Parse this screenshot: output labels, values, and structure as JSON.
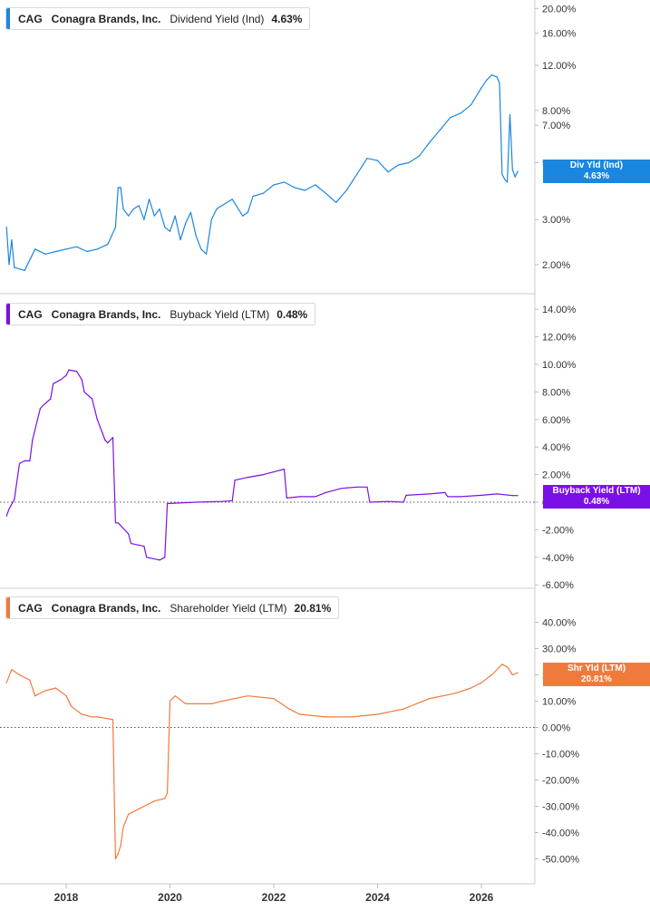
{
  "panels": [
    {
      "ticker": "CAG",
      "company": "Conagra Brands, Inc.",
      "metric": "Dividend Yield (Ind)",
      "value": "4.63%",
      "tag_line1": "Div Yld (Ind)",
      "tag_line2": "4.63%",
      "color": "#1a86e0"
    },
    {
      "ticker": "CAG",
      "company": "Conagra Brands, Inc.",
      "metric": "Buyback Yield (LTM)",
      "value": "0.48%",
      "tag_line1": "Buyback Yield (LTM)",
      "tag_line2": "0.48%",
      "color": "#7a10e8"
    },
    {
      "ticker": "CAG",
      "company": "Conagra Brands, Inc.",
      "metric": "Shareholder Yield (LTM)",
      "value": "20.81%",
      "tag_line1": "Shr Yld (LTM)",
      "tag_line2": "20.81%",
      "color": "#f07a3c"
    }
  ],
  "chart_data": [
    {
      "type": "line",
      "scale": "log",
      "y_ticks": [
        2,
        3,
        5,
        7,
        8,
        12,
        16,
        20
      ],
      "y_tick_labels": [
        "2.00%",
        "3.00%",
        "5.00%",
        "7.00%",
        "8.00%",
        "12.00%",
        "16.00%",
        "20.00%"
      ],
      "x_ticks": [
        2018,
        2020,
        2022,
        2024,
        2026
      ],
      "x": [
        2016.85,
        2016.9,
        2016.95,
        2017.0,
        2017.2,
        2017.4,
        2017.6,
        2017.8,
        2018.0,
        2018.2,
        2018.4,
        2018.6,
        2018.8,
        2018.95,
        2019.0,
        2019.05,
        2019.1,
        2019.2,
        2019.3,
        2019.4,
        2019.5,
        2019.6,
        2019.7,
        2019.8,
        2019.9,
        2020.0,
        2020.1,
        2020.2,
        2020.3,
        2020.4,
        2020.5,
        2020.6,
        2020.7,
        2020.8,
        2020.9,
        2021.0,
        2021.2,
        2021.4,
        2021.5,
        2021.6,
        2021.8,
        2022.0,
        2022.2,
        2022.4,
        2022.6,
        2022.8,
        2023.0,
        2023.2,
        2023.4,
        2023.6,
        2023.8,
        2024.0,
        2024.2,
        2024.4,
        2024.6,
        2024.8,
        2025.0,
        2025.2,
        2025.4,
        2025.6,
        2025.8,
        2026.0,
        2026.1,
        2026.2,
        2026.3,
        2026.35,
        2026.4,
        2026.45,
        2026.5,
        2026.55,
        2026.6,
        2026.65,
        2026.7
      ],
      "y": [
        2.8,
        2.0,
        2.5,
        1.95,
        1.9,
        2.3,
        2.2,
        2.25,
        2.3,
        2.35,
        2.25,
        2.3,
        2.4,
        2.8,
        4.0,
        4.0,
        3.3,
        3.1,
        3.3,
        3.4,
        3.0,
        3.6,
        3.1,
        3.3,
        2.8,
        2.7,
        3.1,
        2.5,
        2.9,
        3.2,
        2.6,
        2.3,
        2.2,
        3.0,
        3.3,
        3.4,
        3.6,
        3.1,
        3.2,
        3.7,
        3.8,
        4.1,
        4.2,
        4.0,
        3.9,
        4.1,
        3.8,
        3.5,
        3.9,
        4.5,
        5.2,
        5.1,
        4.6,
        4.9,
        5.0,
        5.3,
        6.0,
        6.7,
        7.5,
        7.8,
        8.4,
        9.8,
        10.5,
        11.0,
        10.8,
        10.2,
        4.5,
        4.3,
        4.2,
        7.7,
        4.7,
        4.4,
        4.63
      ],
      "current": 4.63,
      "ylabel": "",
      "xlabel": ""
    },
    {
      "type": "line",
      "scale": "linear",
      "y_ticks": [
        -6,
        -4,
        -2,
        0,
        2,
        4,
        6,
        8,
        10,
        12,
        14
      ],
      "y_tick_labels": [
        "-6.00%",
        "-4.00%",
        "-2.00%",
        "0.00%",
        "2.00%",
        "4.00%",
        "6.00%",
        "8.00%",
        "10.00%",
        "12.00%",
        "14.00%"
      ],
      "x_ticks": [
        2018,
        2020,
        2022,
        2024,
        2026
      ],
      "x": [
        2016.85,
        2016.9,
        2017.0,
        2017.1,
        2017.2,
        2017.3,
        2017.35,
        2017.5,
        2017.55,
        2017.7,
        2017.75,
        2017.9,
        2018.0,
        2018.05,
        2018.2,
        2018.3,
        2018.35,
        2018.5,
        2018.6,
        2018.7,
        2018.75,
        2018.8,
        2018.9,
        2018.95,
        2019.0,
        2019.2,
        2019.25,
        2019.5,
        2019.55,
        2019.8,
        2019.9,
        2019.95,
        2020.5,
        2021.0,
        2021.2,
        2021.25,
        2021.5,
        2021.8,
        2022.0,
        2022.2,
        2022.25,
        2022.5,
        2022.8,
        2023.0,
        2023.3,
        2023.6,
        2023.8,
        2023.85,
        2024.2,
        2024.5,
        2024.55,
        2025.0,
        2025.3,
        2025.35,
        2025.6,
        2026.0,
        2026.3,
        2026.6,
        2026.7
      ],
      "y": [
        -1.0,
        -0.5,
        0.2,
        2.8,
        3.0,
        3.0,
        4.5,
        6.8,
        7.0,
        7.5,
        8.6,
        8.9,
        9.2,
        9.6,
        9.5,
        8.9,
        8.0,
        7.5,
        6.0,
        5.0,
        4.5,
        4.3,
        4.7,
        -1.5,
        -1.5,
        -2.3,
        -3.0,
        -3.2,
        -4.0,
        -4.2,
        -4.0,
        -0.1,
        0.0,
        0.05,
        0.1,
        1.6,
        1.8,
        2.0,
        2.2,
        2.4,
        0.3,
        0.4,
        0.4,
        0.7,
        1.0,
        1.1,
        1.1,
        0.0,
        0.05,
        0.0,
        0.5,
        0.6,
        0.7,
        0.4,
        0.4,
        0.5,
        0.6,
        0.48,
        0.48
      ],
      "current": 0.48,
      "ylabel": "",
      "xlabel": ""
    },
    {
      "type": "line",
      "scale": "linear",
      "y_ticks": [
        -50,
        -40,
        -30,
        -20,
        -10,
        0,
        10,
        20,
        30,
        40
      ],
      "y_tick_labels": [
        "-50.00%",
        "-40.00%",
        "-30.00%",
        "-20.00%",
        "-10.00%",
        "0.00%",
        "10.00%",
        "20.00%",
        "30.00%",
        "40.00%"
      ],
      "x_ticks": [
        2018,
        2020,
        2022,
        2024,
        2026
      ],
      "x": [
        2016.85,
        2016.95,
        2017.1,
        2017.3,
        2017.4,
        2017.6,
        2017.8,
        2018.0,
        2018.1,
        2018.3,
        2018.5,
        2018.6,
        2018.9,
        2018.95,
        2019.0,
        2019.05,
        2019.1,
        2019.2,
        2019.3,
        2019.5,
        2019.7,
        2019.9,
        2019.95,
        2020.0,
        2020.1,
        2020.3,
        2020.5,
        2020.8,
        2021.0,
        2021.5,
        2022.0,
        2022.3,
        2022.5,
        2023.0,
        2023.5,
        2024.0,
        2024.5,
        2025.0,
        2025.5,
        2025.8,
        2026.0,
        2026.2,
        2026.4,
        2026.5,
        2026.6,
        2026.7
      ],
      "y": [
        17,
        22,
        20,
        18,
        12,
        14,
        15,
        12,
        8,
        5,
        4,
        4,
        3,
        -50,
        -48,
        -45,
        -38,
        -33,
        -32,
        -30,
        -28,
        -27,
        -25,
        10,
        12,
        9,
        9,
        9,
        10,
        12,
        11,
        7,
        5,
        4,
        4,
        5,
        7,
        11,
        13,
        15,
        17,
        20,
        24,
        23,
        20,
        20.81
      ],
      "current": 20.81,
      "ylabel": "",
      "xlabel": ""
    }
  ]
}
